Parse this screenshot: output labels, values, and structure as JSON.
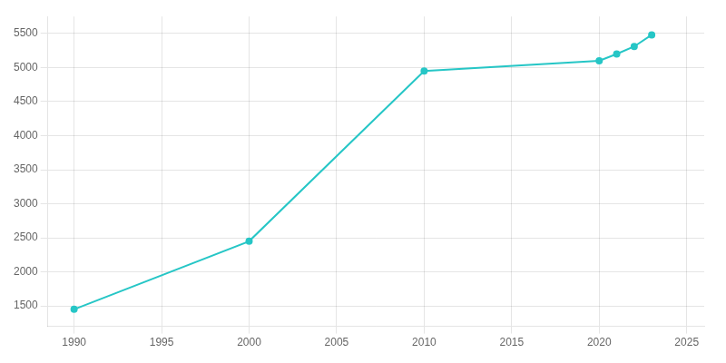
{
  "chart_data": {
    "type": "line",
    "x": [
      1990,
      2000,
      2010,
      2020,
      2021,
      2022,
      2023
    ],
    "values": [
      1450,
      2450,
      4950,
      5100,
      5200,
      5310,
      5480
    ],
    "color": "#26c6c6",
    "marker": "circle",
    "xlim": [
      1988.5,
      2026
    ],
    "xticks": [
      1990,
      1995,
      2000,
      2005,
      2010,
      2015,
      2020,
      2025
    ],
    "ylim": [
      1200,
      5750
    ],
    "yticks": [
      1500,
      2000,
      2500,
      3000,
      3500,
      4000,
      4500,
      5000,
      5500
    ],
    "grid": true
  }
}
